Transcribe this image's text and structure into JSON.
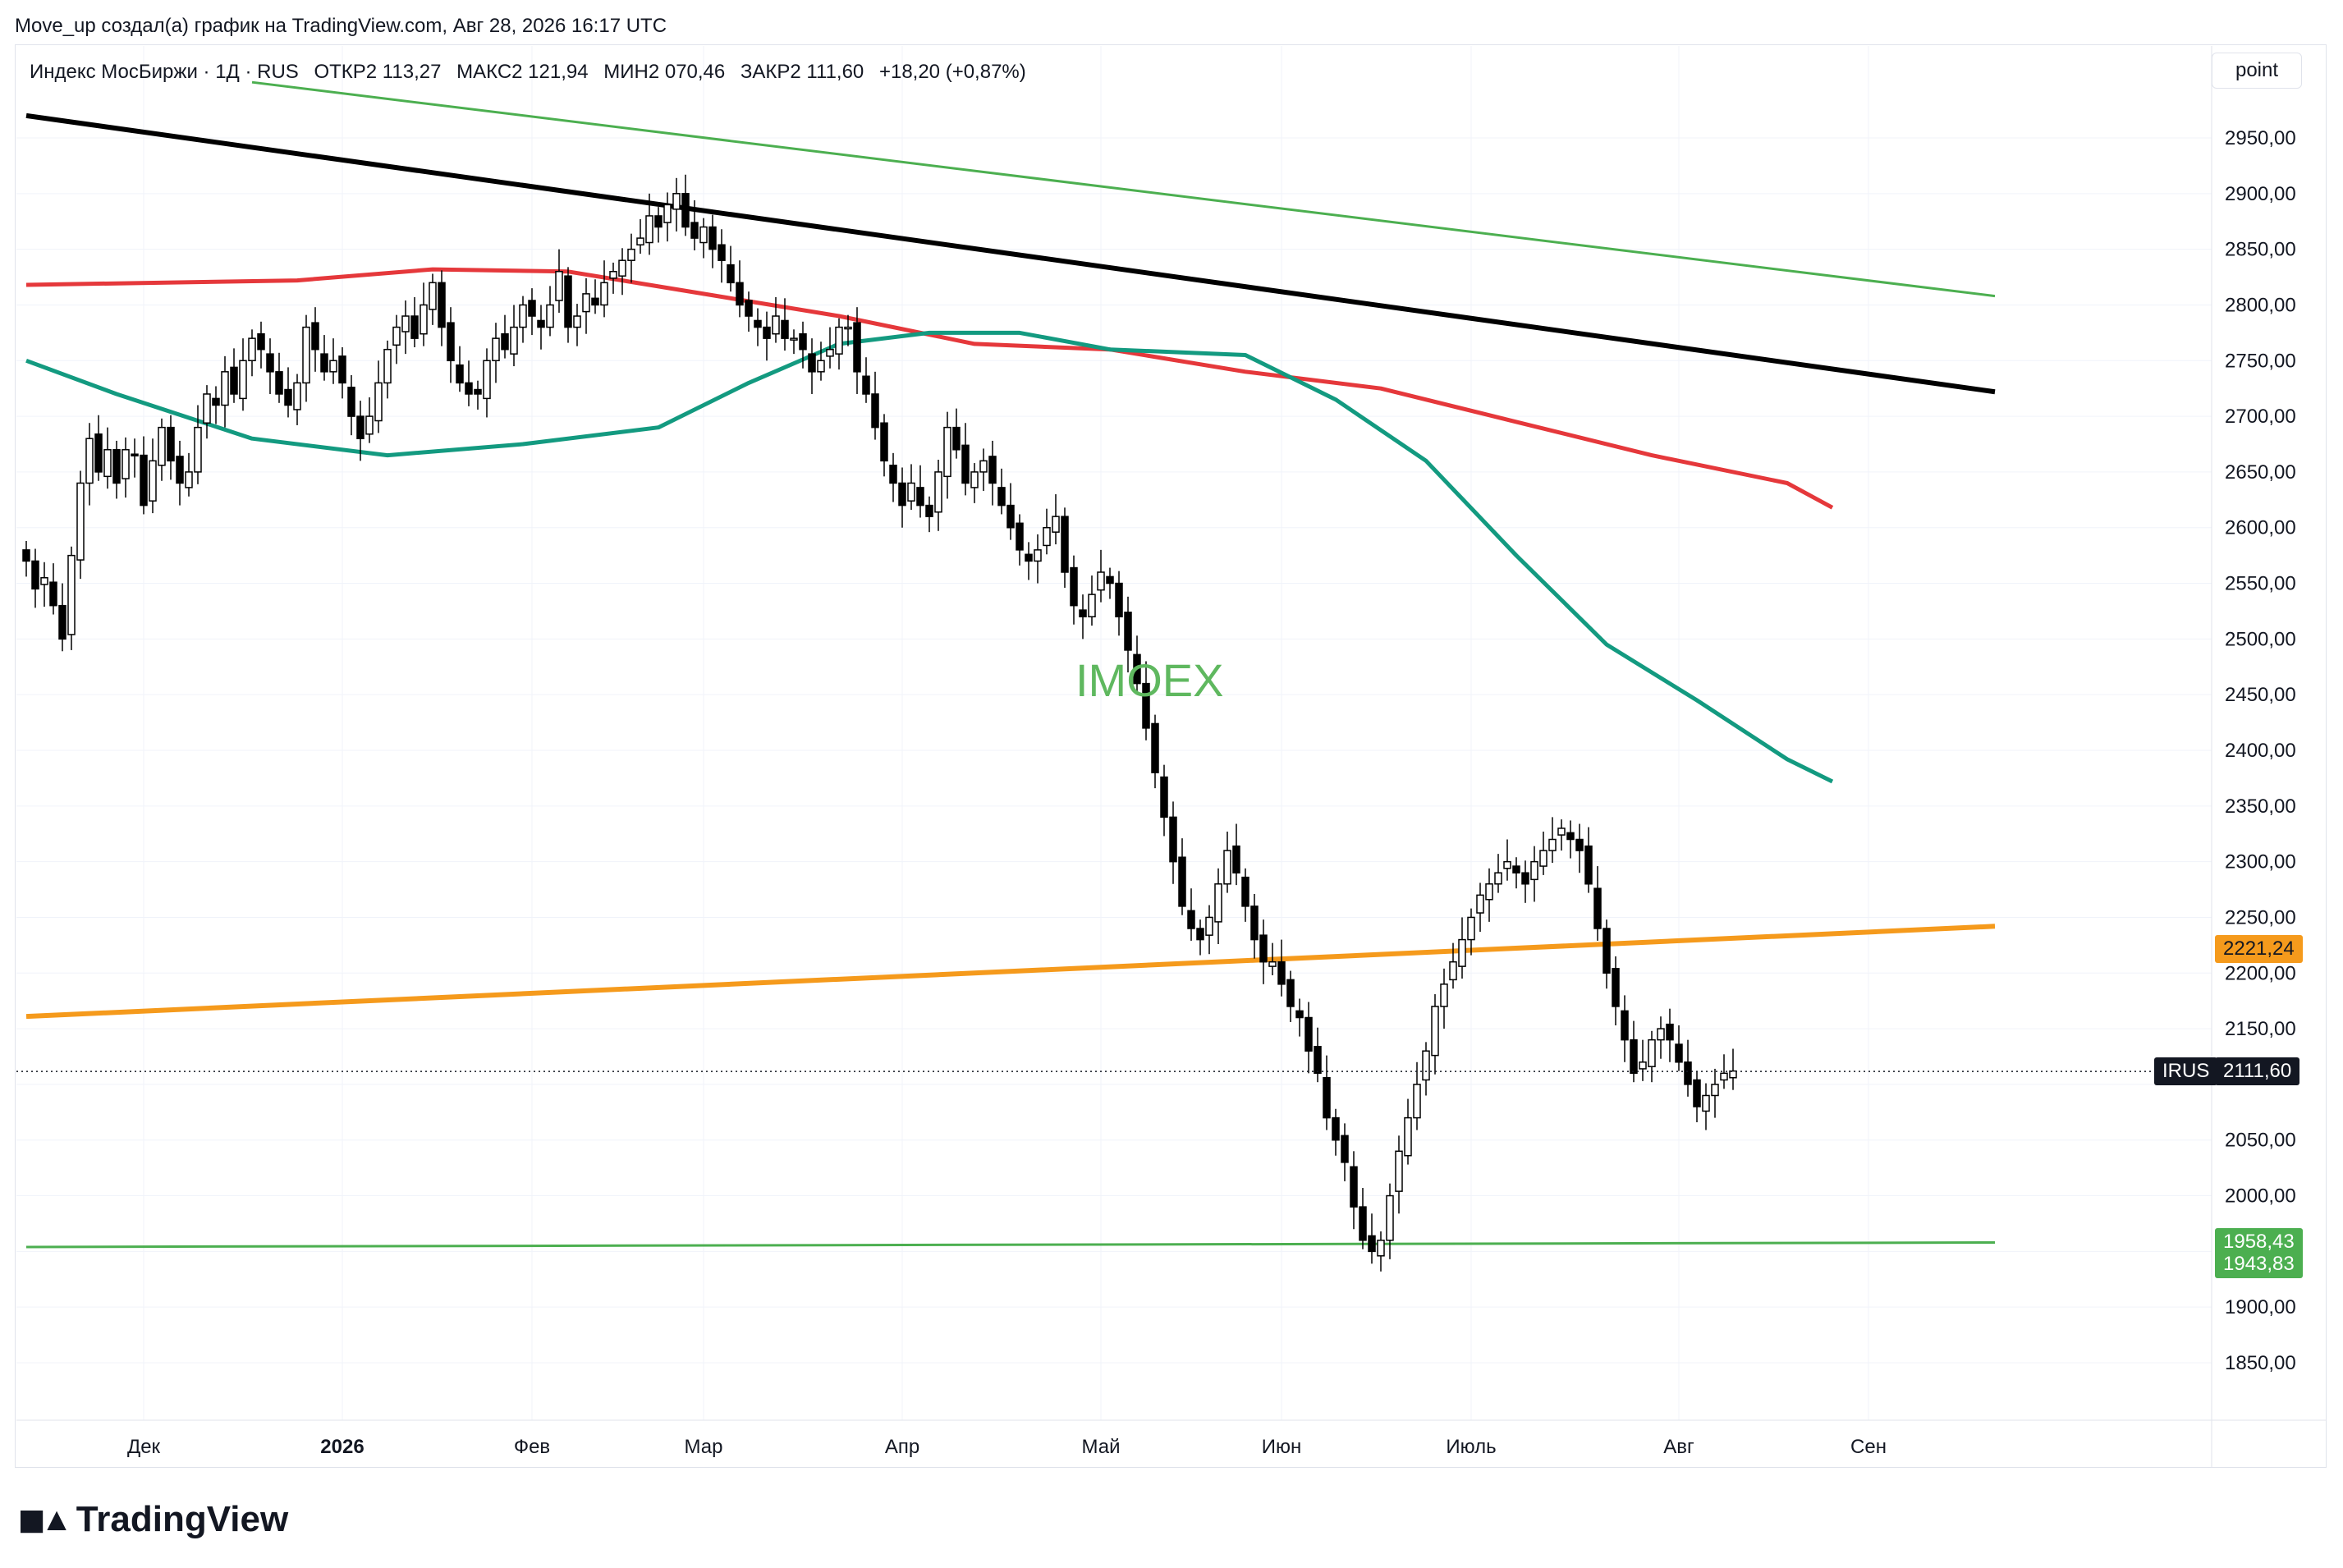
{
  "caption": "Move_up создал(а) график на TradingView.com, Авг 28, 2026 16:17 UTC",
  "legend": {
    "symbol": "Индекс МосБиржи · 1Д · RUS",
    "open": "ОТКР2 113,27",
    "high": "МАКС2 121,94",
    "low": "МИН2 070,46",
    "close": "ЗАКР2 111,60",
    "change": "+18,20 (+0,87%)"
  },
  "unit_button": "point",
  "watermark": "IMOEX",
  "logo_text": "TradingView",
  "badges": {
    "orange_line": "2221,24",
    "symbol_tag": "IRUS",
    "last_price": "2111,60",
    "green_upper": "1958,43",
    "green_lower": "1943,83"
  },
  "colors": {
    "up": "#ffffff",
    "down": "#000000",
    "ma_red": "#e5383b",
    "ma_teal": "#139a80",
    "trend_black": "#000000",
    "trend_green": "#4caf50",
    "trend_orange": "#f59a1c",
    "support_green": "#4caf50"
  },
  "chart_data": {
    "type": "candlestick",
    "symbol": "IMOEX",
    "ylim": [
      1800,
      3000
    ],
    "y_ticks": [
      1850,
      1900,
      1950,
      2000,
      2050,
      2100,
      2150,
      2200,
      2250,
      2300,
      2350,
      2400,
      2450,
      2500,
      2550,
      2600,
      2650,
      2700,
      2750,
      2800,
      2850,
      2900,
      2950
    ],
    "y_tick_labels": [
      "1850,00",
      "1900,00",
      "",
      "2000,00",
      "2050,00",
      "",
      "2150,00",
      "2200,00",
      "2250,00",
      "2300,00",
      "2350,00",
      "2400,00",
      "2450,00",
      "2500,00",
      "2550,00",
      "2600,00",
      "2650,00",
      "2700,00",
      "2750,00",
      "2800,00",
      "2850,00",
      "2900,00",
      "2950,00"
    ],
    "x_labels": [
      {
        "label": "Дек",
        "bar": 13
      },
      {
        "label": "2026",
        "bar": 35
      },
      {
        "label": "Фев",
        "bar": 56
      },
      {
        "label": "Мар",
        "bar": 75
      },
      {
        "label": "Апр",
        "bar": 97
      },
      {
        "label": "Май",
        "bar": 119
      },
      {
        "label": "Июн",
        "bar": 139
      },
      {
        "label": "Июль",
        "bar": 160
      },
      {
        "label": "Авг",
        "bar": 183
      },
      {
        "label": "Сен",
        "bar": 204
      }
    ],
    "bold_x_labels": [
      "2026"
    ],
    "bars_total": 218,
    "closes": [
      2570,
      2545,
      2555,
      2530,
      2500,
      2575,
      2640,
      2680,
      2650,
      2670,
      2640,
      2670,
      2665,
      2620,
      2660,
      2690,
      2660,
      2640,
      2650,
      2690,
      2720,
      2710,
      2740,
      2720,
      2750,
      2770,
      2760,
      2740,
      2720,
      2710,
      2730,
      2780,
      2760,
      2740,
      2750,
      2730,
      2700,
      2680,
      2700,
      2730,
      2760,
      2780,
      2790,
      2770,
      2800,
      2820,
      2780,
      2750,
      2730,
      2720,
      2720,
      2750,
      2770,
      2760,
      2780,
      2800,
      2790,
      2780,
      2800,
      2830,
      2780,
      2790,
      2810,
      2800,
      2820,
      2830,
      2840,
      2850,
      2860,
      2880,
      2870,
      2890,
      2900,
      2870,
      2860,
      2870,
      2850,
      2840,
      2820,
      2800,
      2790,
      2780,
      2770,
      2790,
      2770,
      2770,
      2760,
      2740,
      2750,
      2760,
      2780,
      2780,
      2740,
      2720,
      2690,
      2660,
      2640,
      2620,
      2640,
      2620,
      2610,
      2650,
      2690,
      2670,
      2640,
      2650,
      2660,
      2640,
      2620,
      2600,
      2580,
      2570,
      2580,
      2600,
      2610,
      2560,
      2530,
      2520,
      2540,
      2560,
      2550,
      2520,
      2490,
      2460,
      2420,
      2380,
      2340,
      2300,
      2260,
      2240,
      2230,
      2250,
      2280,
      2310,
      2290,
      2260,
      2230,
      2210,
      2210,
      2190,
      2170,
      2160,
      2130,
      2110,
      2070,
      2050,
      2030,
      1990,
      1960,
      1950,
      1960,
      2000,
      2040,
      2070,
      2100,
      2130,
      2170,
      2190,
      2210,
      2230,
      2250,
      2270,
      2280,
      2290,
      2300,
      2290,
      2280,
      2300,
      2310,
      2320,
      2330,
      2320,
      2310,
      2280,
      2240,
      2200,
      2170,
      2140,
      2110,
      2120,
      2140,
      2150,
      2140,
      2120,
      2100,
      2080,
      2090,
      2100,
      2110,
      2112
    ],
    "series": [
      {
        "name": "MA red",
        "points": [
          [
            0,
            2818
          ],
          [
            30,
            2822
          ],
          [
            45,
            2832
          ],
          [
            60,
            2830
          ],
          [
            75,
            2810
          ],
          [
            90,
            2790
          ],
          [
            105,
            2765
          ],
          [
            120,
            2760
          ],
          [
            135,
            2740
          ],
          [
            150,
            2725
          ],
          [
            165,
            2695
          ],
          [
            180,
            2665
          ],
          [
            195,
            2640
          ],
          [
            200,
            2618
          ]
        ]
      },
      {
        "name": "MA teal",
        "points": [
          [
            0,
            2750
          ],
          [
            10,
            2720
          ],
          [
            25,
            2680
          ],
          [
            40,
            2665
          ],
          [
            55,
            2675
          ],
          [
            70,
            2690
          ],
          [
            80,
            2730
          ],
          [
            90,
            2765
          ],
          [
            100,
            2775
          ],
          [
            110,
            2775
          ],
          [
            120,
            2760
          ],
          [
            135,
            2755
          ],
          [
            145,
            2715
          ],
          [
            155,
            2660
          ],
          [
            165,
            2575
          ],
          [
            175,
            2495
          ],
          [
            185,
            2445
          ],
          [
            195,
            2392
          ],
          [
            200,
            2372
          ]
        ]
      }
    ],
    "trendlines": [
      {
        "name": "black resistance",
        "from": [
          0,
          2970
        ],
        "to": [
          218,
          2722
        ]
      },
      {
        "name": "green upper channel",
        "from": [
          25,
          3000
        ],
        "to": [
          218,
          2808
        ]
      },
      {
        "name": "orange support",
        "from": [
          0,
          2161
        ],
        "to": [
          218,
          2242
        ]
      },
      {
        "name": "green horizontal",
        "from": [
          0,
          1954
        ],
        "to": [
          218,
          1958
        ]
      }
    ],
    "last_price": 2111.6
  }
}
